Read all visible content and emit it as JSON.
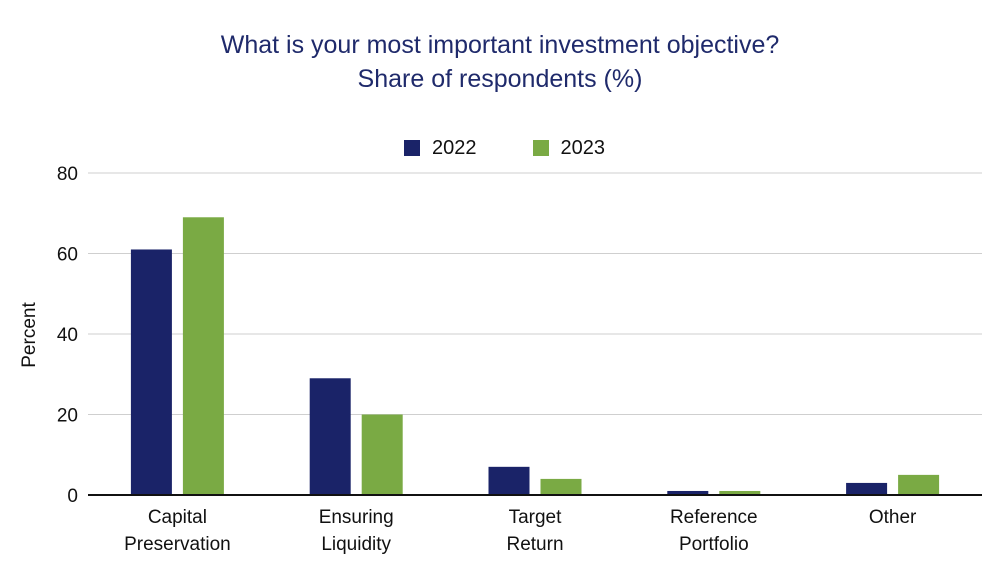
{
  "chart_data": {
    "type": "bar",
    "title": "What is your most important investment objective?",
    "subtitle": "Share of respondents (%)",
    "ylabel": "Percent",
    "xlabel": "",
    "ylim": [
      0,
      80
    ],
    "yticks": [
      "0",
      "20",
      "40",
      "60",
      "80"
    ],
    "grid": true,
    "legend_position": "top-center",
    "categories": [
      [
        "Capital",
        "Preservation"
      ],
      [
        "Ensuring",
        "Liquidity"
      ],
      [
        "Target",
        "Return"
      ],
      [
        "Reference",
        "Portfolio"
      ],
      [
        "Other"
      ]
    ],
    "series": [
      {
        "name": "2022",
        "color": "#1a2368",
        "values": [
          61,
          29,
          7,
          1,
          3
        ]
      },
      {
        "name": "2023",
        "color": "#7aaa44",
        "values": [
          69,
          20,
          4,
          1,
          5
        ]
      }
    ]
  }
}
